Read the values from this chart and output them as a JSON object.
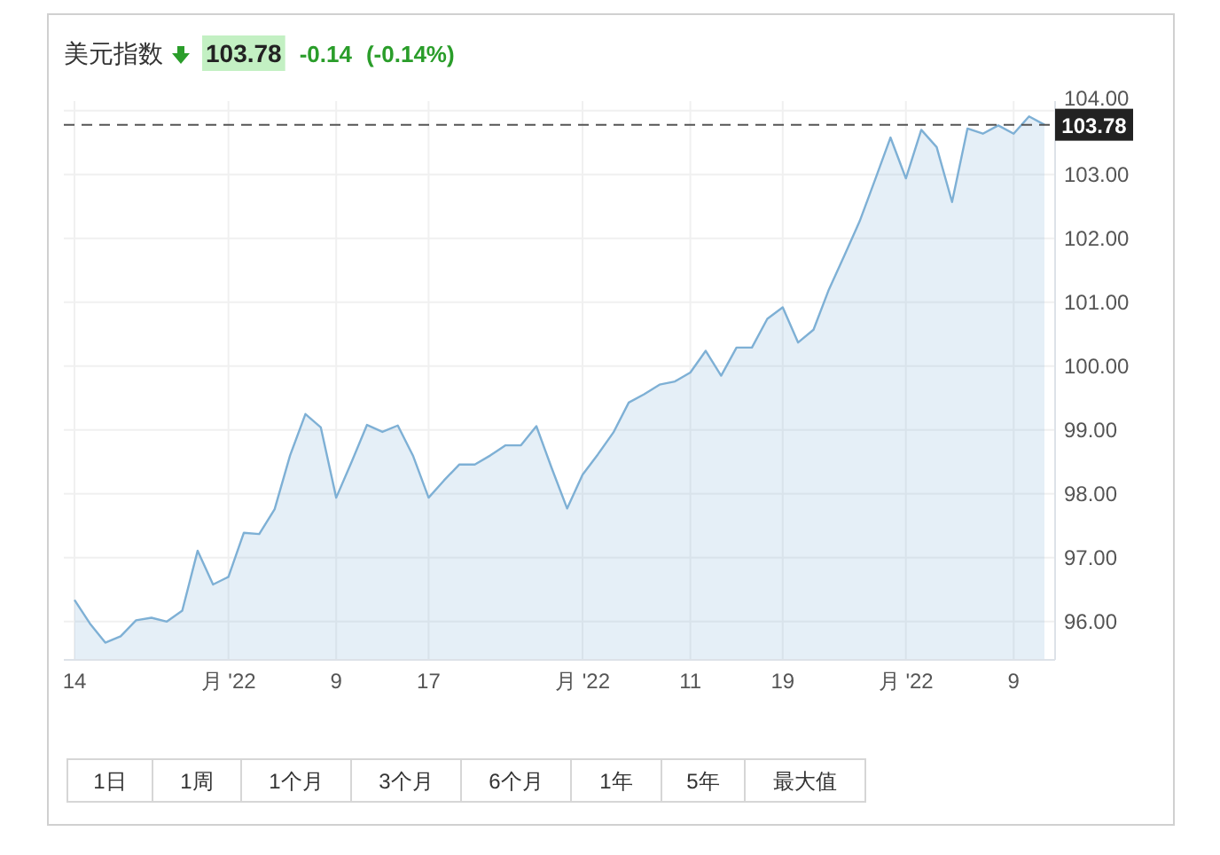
{
  "chart_data": {
    "type": "area",
    "title": "美元指数",
    "annotations": [
      "103.78",
      "-0.14",
      "(-0.14%)",
      "1日",
      "1周",
      "1个月",
      "3个月",
      "6个月",
      "1年",
      "5年",
      "最大值"
    ],
    "categories": [
      "14",
      null,
      null,
      null,
      null,
      null,
      null,
      null,
      null,
      null,
      "月 '22",
      null,
      null,
      null,
      null,
      null,
      null,
      "9",
      null,
      null,
      null,
      null,
      null,
      "17",
      null,
      null,
      null,
      null,
      null,
      null,
      null,
      null,
      null,
      "月 '22",
      null,
      null,
      null,
      null,
      null,
      null,
      "11",
      null,
      null,
      null,
      null,
      null,
      "19",
      null,
      null,
      null,
      null,
      null,
      null,
      null,
      "月 '22",
      null,
      null,
      null,
      null,
      null,
      null,
      "9",
      null,
      null
    ],
    "series": [
      {
        "color": "#7eb0d5",
        "values": [
          96.34,
          95.97,
          95.67,
          95.77,
          96.02,
          96.06,
          96.0,
          96.17,
          97.11,
          96.58,
          96.7,
          97.39,
          97.37,
          97.76,
          98.6,
          99.25,
          99.04,
          97.94,
          98.5,
          99.08,
          98.97,
          99.07,
          98.59,
          97.94,
          98.21,
          98.46,
          98.46,
          98.6,
          98.76,
          98.76,
          99.06,
          98.4,
          97.77,
          98.3,
          98.62,
          98.96,
          99.43,
          99.56,
          99.71,
          99.76,
          99.9,
          100.24,
          99.85,
          100.29,
          100.29,
          100.74,
          100.92,
          100.37,
          100.57,
          101.2,
          101.73,
          102.27,
          102.92,
          103.58,
          102.94,
          103.7,
          103.43,
          102.57,
          103.72,
          103.64,
          103.77,
          103.64,
          103.91,
          103.78
        ]
      }
    ],
    "ylim": [
      95.4,
      104.15
    ],
    "yticks": [
      {
        "value": 96,
        "label": "96.00"
      },
      {
        "value": 97,
        "label": "97.00"
      },
      {
        "value": 98,
        "label": "98.00"
      },
      {
        "value": 99,
        "label": "99.00"
      },
      {
        "value": 100,
        "label": "100.00"
      },
      {
        "value": 101,
        "label": "101.00"
      },
      {
        "value": 102,
        "label": "102.00"
      },
      {
        "value": 103,
        "label": "103.00"
      },
      {
        "value": 104,
        "label": "104.00"
      }
    ],
    "ref_lines": [
      {
        "axis": "y",
        "value": 103.78,
        "label": "103.78",
        "color": "#555555",
        "line_style": "dashed"
      }
    ],
    "grid": true,
    "marker": "none",
    "line_style": "solid"
  }
}
